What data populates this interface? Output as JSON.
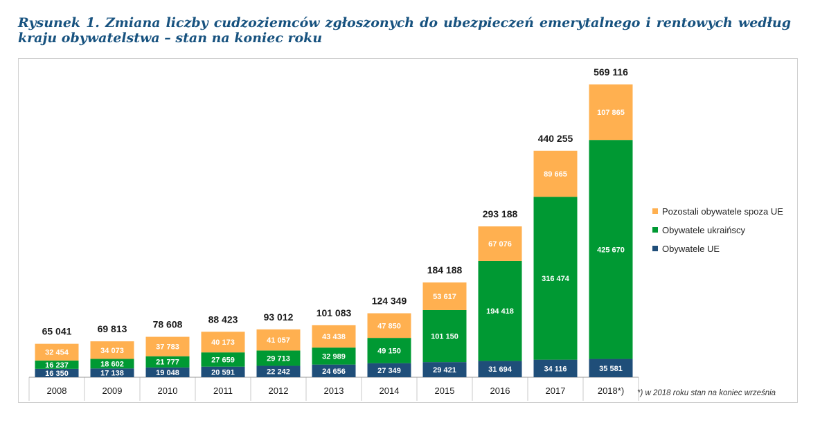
{
  "title": "Rysunek 1. Zmiana liczby cudzoziemców zgłoszonych do ubezpieczeń emerytalnego i rentowych według kraju obywatelstwa – stan na koniec roku",
  "footnote": "*) w 2018 roku stan na koniec września",
  "colors": {
    "eu": "#1f4e79",
    "ua": "#009933",
    "other": "#ffb050",
    "axis": "#999999",
    "grid": "#c8c8c8"
  },
  "legend": [
    {
      "label": "Pozostali obywatele spoza UE",
      "color": "#ffb050"
    },
    {
      "label": "Obywatele ukraińscy",
      "color": "#009933"
    },
    {
      "label": "Obywatele UE",
      "color": "#1f4e79"
    }
  ],
  "chart_data": {
    "type": "bar",
    "stacked": true,
    "categories": [
      "2008",
      "2009",
      "2010",
      "2011",
      "2012",
      "2013",
      "2014",
      "2015",
      "2016",
      "2017",
      "2018*)"
    ],
    "series": [
      {
        "name": "Obywatele UE",
        "values": [
          16350,
          17138,
          19048,
          20591,
          22242,
          24656,
          27349,
          29421,
          31694,
          34116,
          35581
        ],
        "labels": [
          "16 350",
          "17 138",
          "19 048",
          "20 591",
          "22 242",
          "24 656",
          "27 349",
          "29 421",
          "31 694",
          "34 116",
          "35 581"
        ]
      },
      {
        "name": "Obywatele ukraińscy",
        "values": [
          16237,
          18602,
          21777,
          27659,
          29713,
          32989,
          49150,
          101150,
          194418,
          316474,
          425670
        ],
        "labels": [
          "16 237",
          "18 602",
          "21 777",
          "27 659",
          "29 713",
          "32 989",
          "49 150",
          "101 150",
          "194 418",
          "316 474",
          "425 670"
        ]
      },
      {
        "name": "Pozostali obywatele spoza UE",
        "values": [
          32454,
          34073,
          37783,
          40173,
          41057,
          43438,
          47850,
          53617,
          67076,
          89665,
          107865
        ],
        "labels": [
          "32 454",
          "34 073",
          "37 783",
          "40 173",
          "41 057",
          "43 438",
          "47 850",
          "53 617",
          "67 076",
          "89 665",
          "107 865"
        ]
      }
    ],
    "totals": [
      65041,
      69813,
      78608,
      88423,
      93012,
      101083,
      124349,
      184188,
      293188,
      440255,
      569116
    ],
    "total_labels": [
      "65 041",
      "69 813",
      "78 608",
      "88 423",
      "93 012",
      "101 083",
      "124 349",
      "184 188",
      "293 188",
      "440 255",
      "569 116"
    ],
    "ylim": [
      0,
      569116
    ],
    "legend_position": "right"
  }
}
